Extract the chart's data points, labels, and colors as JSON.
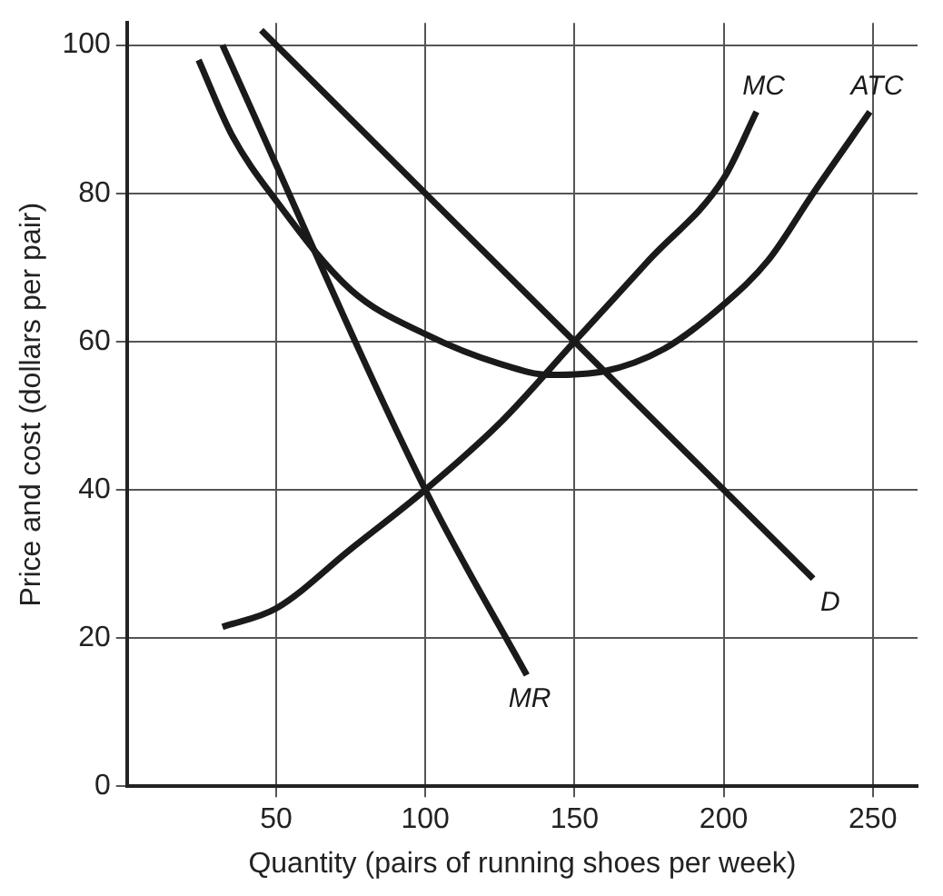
{
  "chart_data": {
    "type": "line",
    "xlabel": "Quantity (pairs of running shoes per week)",
    "ylabel": "Price and cost (dollars per pair)",
    "xlim": [
      0,
      265
    ],
    "ylim": [
      0,
      103
    ],
    "xticks": [
      50,
      100,
      150,
      200,
      250
    ],
    "yticks": [
      0,
      20,
      40,
      60,
      80,
      100
    ],
    "grid": true,
    "legend": false,
    "marker": "none",
    "line_style": "solid",
    "series": [
      {
        "name": "MC",
        "color": "#1a1a1a",
        "x": [
          32,
          50,
          75,
          100,
          125,
          150,
          175,
          200,
          211
        ],
        "values": [
          21.5,
          24,
          32,
          40,
          49,
          60,
          71,
          82,
          91
        ]
      },
      {
        "name": "ATC",
        "color": "#1a1a1a",
        "x": [
          24,
          35,
          50,
          75,
          100,
          125,
          142,
          160,
          180,
          200,
          215,
          230,
          249
        ],
        "values": [
          98,
          88,
          79,
          67,
          61,
          57,
          55.5,
          56,
          59,
          65,
          71,
          80,
          91
        ]
      },
      {
        "name": "MR",
        "color": "#1a1a1a",
        "x": [
          32,
          100,
          134
        ],
        "values": [
          100,
          40,
          15
        ]
      },
      {
        "name": "D",
        "color": "#1a1a1a",
        "x": [
          45,
          230
        ],
        "values": [
          102,
          28
        ]
      }
    ]
  }
}
